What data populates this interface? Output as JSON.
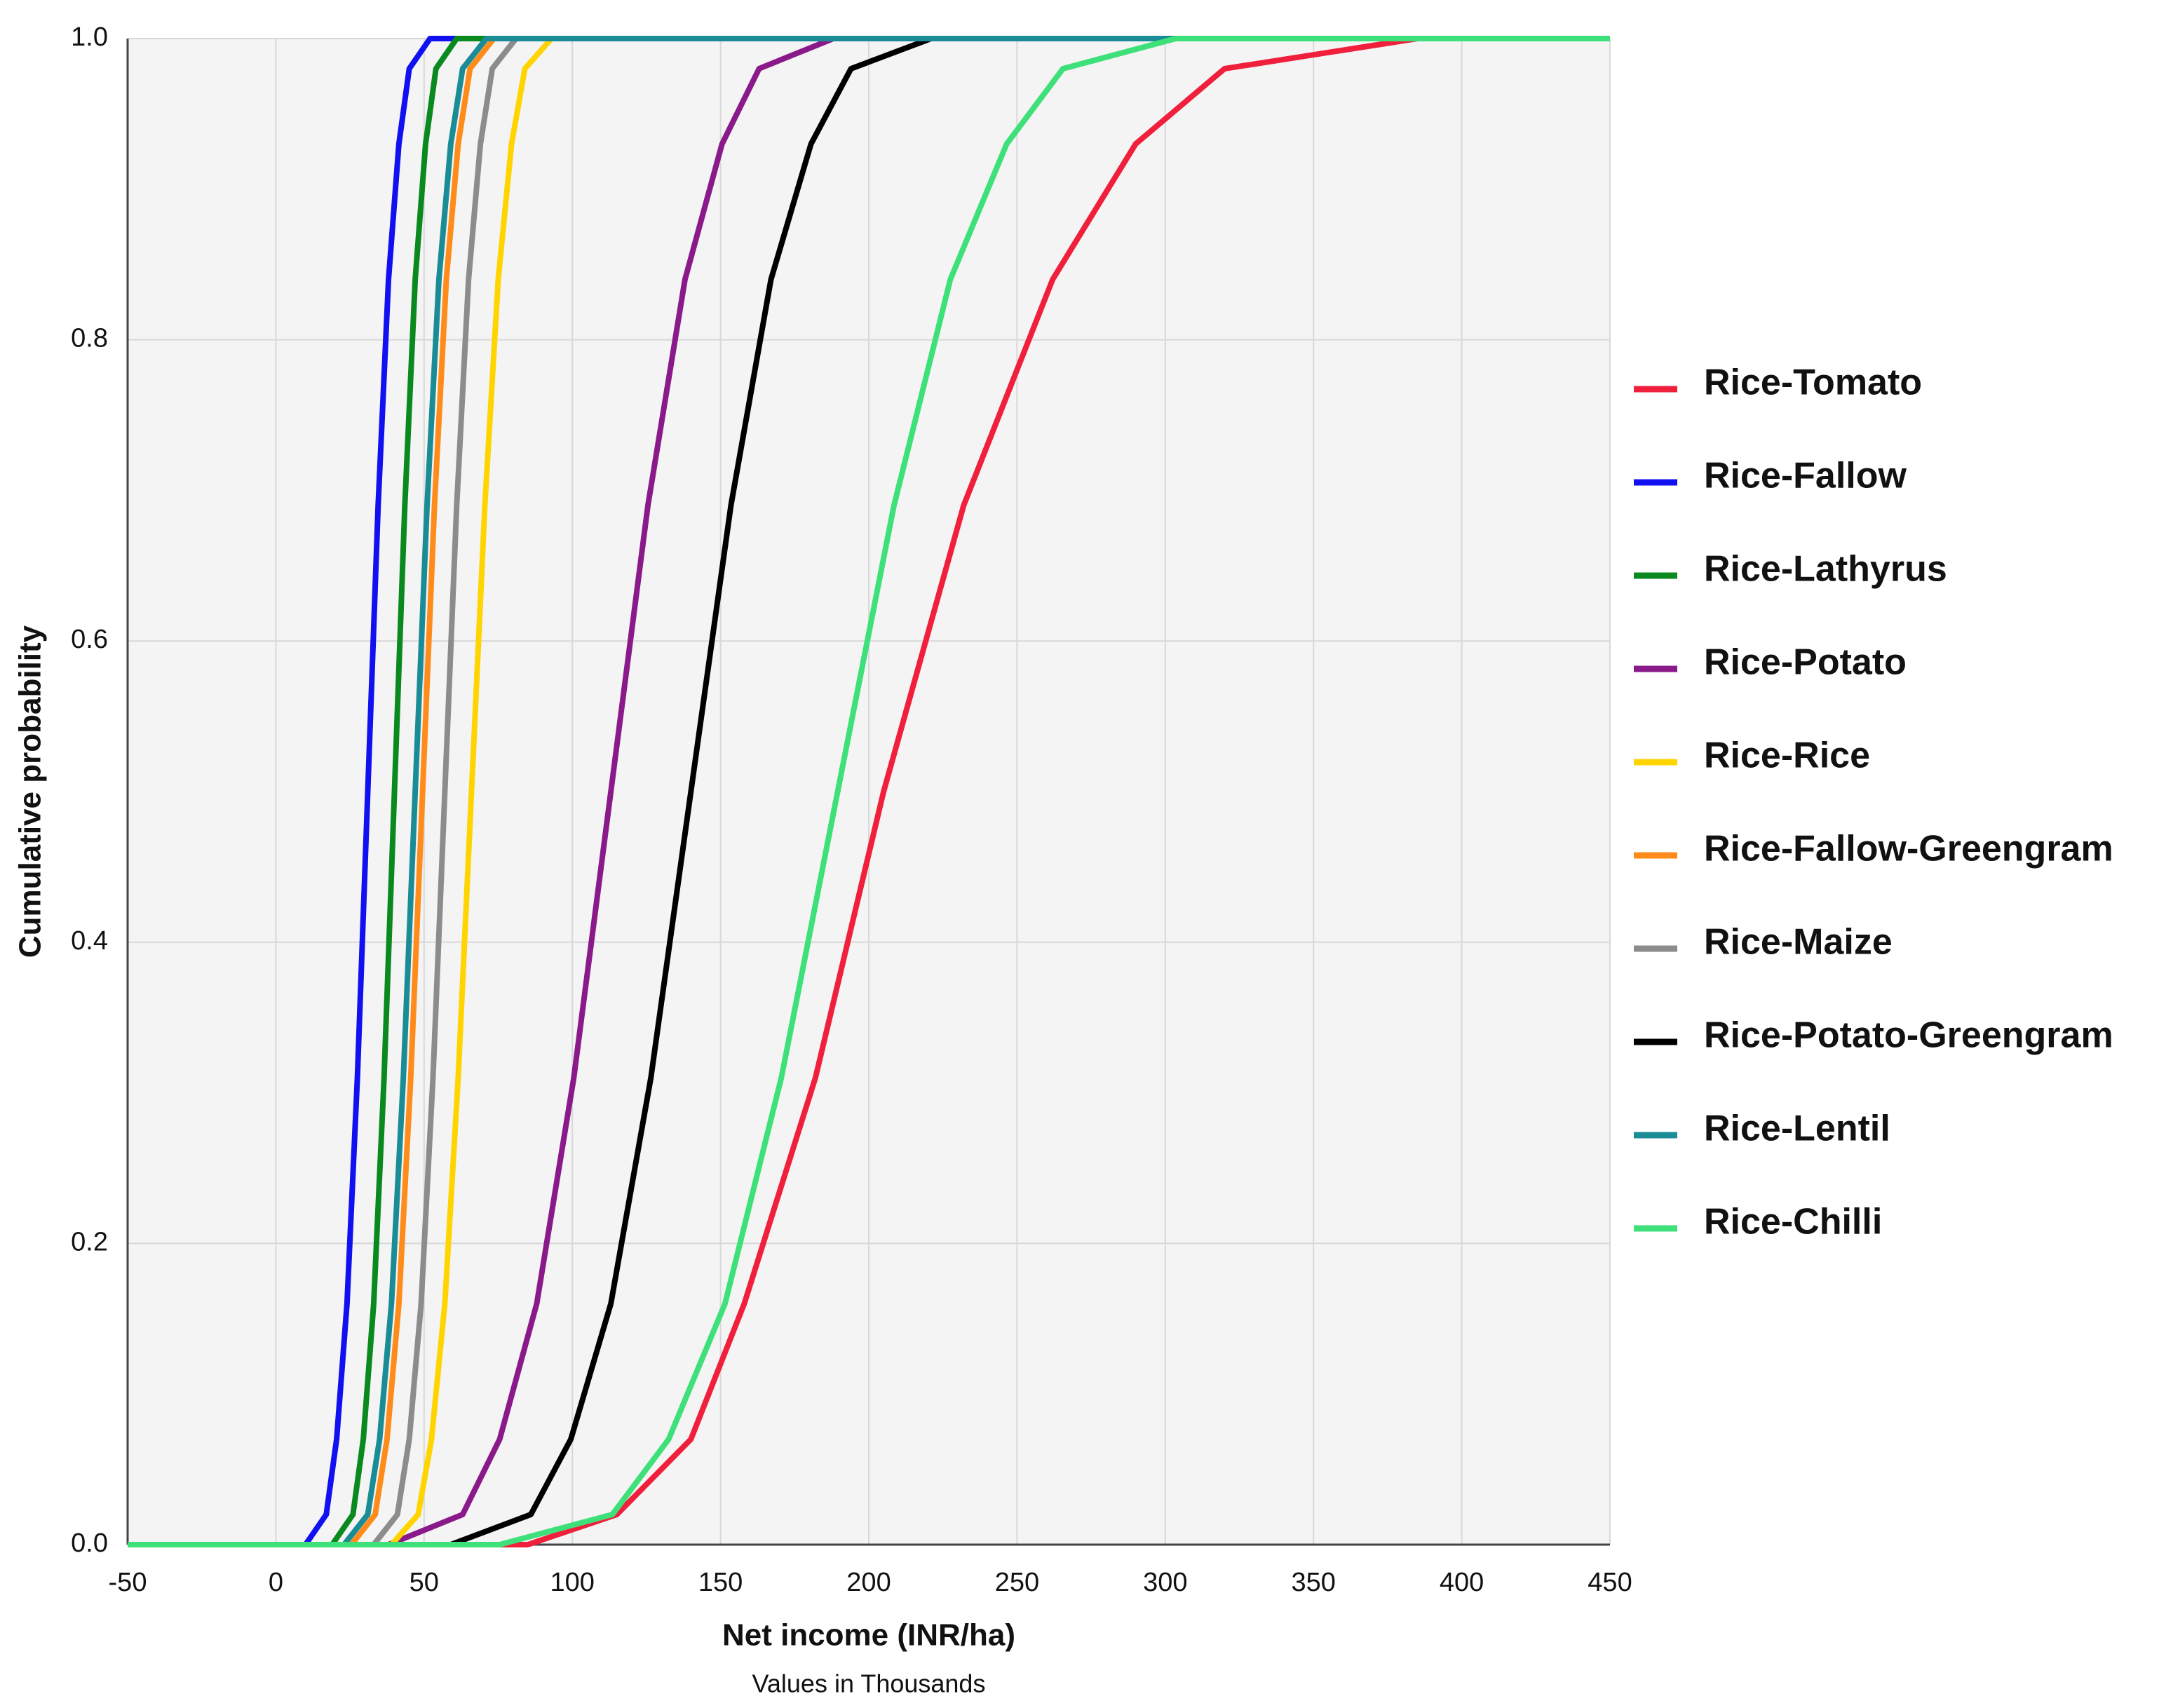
{
  "chart_data": {
    "type": "line",
    "x_label": "Net income (INR/ha)",
    "x_sublabel": "Values in Thousands",
    "y_label": "Cumulative probability",
    "xlim": [
      -50,
      450
    ],
    "xticks": [
      -50,
      0,
      50,
      100,
      150,
      200,
      250,
      300,
      350,
      400,
      450
    ],
    "ylim": [
      0,
      1
    ],
    "yticks": [
      {
        "value": 0,
        "label": "0.0"
      },
      0.2,
      0.4,
      0.6,
      0.8,
      {
        "value": 1,
        "label": "1.0"
      }
    ],
    "grid": true,
    "legend": "right",
    "series": [
      {
        "name": "Rice-Tomato",
        "color": "#f0203c",
        "x": [
          -50,
          85,
          115,
          140,
          158,
          182,
          205,
          232,
          262,
          290,
          320,
          385,
          400
        ],
        "values": [
          0,
          0,
          0.02,
          0.07,
          0.16,
          0.31,
          0.5,
          0.69,
          0.84,
          0.93,
          0.98,
          1,
          1
        ]
      },
      {
        "name": "Rice-Fallow",
        "color": "#1010f0",
        "x": [
          -50,
          10,
          17,
          20.5,
          24,
          27.5,
          31,
          34.5,
          38,
          41.5,
          45,
          52,
          450
        ],
        "values": [
          0,
          0,
          0.02,
          0.07,
          0.16,
          0.31,
          0.5,
          0.69,
          0.84,
          0.93,
          0.98,
          1,
          1
        ]
      },
      {
        "name": "Rice-Lathyrus",
        "color": "#0a8a1e",
        "x": [
          -50,
          19,
          26,
          29.5,
          33,
          36.5,
          40,
          43.5,
          47,
          50.5,
          54,
          61,
          450
        ],
        "values": [
          0,
          0,
          0.02,
          0.07,
          0.16,
          0.31,
          0.5,
          0.69,
          0.84,
          0.93,
          0.98,
          1,
          1
        ]
      },
      {
        "name": "Rice-Potato",
        "color": "#8a1a8a",
        "x": [
          38,
          63,
          75.5,
          88,
          100.5,
          113,
          125.5,
          138,
          150.5,
          163,
          188,
          450
        ],
        "values": [
          0,
          0.02,
          0.07,
          0.16,
          0.31,
          0.5,
          0.69,
          0.84,
          0.93,
          0.98,
          1,
          1
        ]
      },
      {
        "name": "Rice-Rice",
        "color": "#ffd400",
        "x": [
          -50,
          39,
          48,
          52.5,
          57,
          61.5,
          66,
          70.5,
          75,
          79.5,
          84,
          93,
          450
        ],
        "values": [
          0,
          0,
          0.02,
          0.07,
          0.16,
          0.31,
          0.5,
          0.69,
          0.84,
          0.93,
          0.98,
          1,
          1
        ]
      },
      {
        "name": "Rice-Fallow-Greengram",
        "color": "#ff8c1a",
        "x": [
          -50,
          25.5,
          33.5,
          37.5,
          41.5,
          45.5,
          49.5,
          53.5,
          57.5,
          61.5,
          65.5,
          73.5,
          450
        ],
        "values": [
          0,
          0,
          0.02,
          0.07,
          0.16,
          0.31,
          0.5,
          0.69,
          0.84,
          0.93,
          0.98,
          1,
          1
        ]
      },
      {
        "name": "Rice-Maize",
        "color": "#8c8c8c",
        "x": [
          -50,
          33,
          41,
          45,
          49,
          53,
          57,
          61,
          65,
          69,
          73,
          81,
          450
        ],
        "values": [
          0,
          0,
          0.02,
          0.07,
          0.16,
          0.31,
          0.5,
          0.69,
          0.84,
          0.93,
          0.98,
          1,
          1
        ]
      },
      {
        "name": "Rice-Potato-Greengram",
        "color": "#000000",
        "x": [
          59,
          86,
          99.5,
          113,
          126.5,
          140,
          153.5,
          167,
          180.5,
          194,
          221
        ],
        "values": [
          0,
          0.02,
          0.07,
          0.16,
          0.31,
          0.5,
          0.69,
          0.84,
          0.93,
          0.98,
          1
        ]
      },
      {
        "name": "Rice-Lentil",
        "color": "#1a8c96",
        "x": [
          -50,
          23,
          31,
          35,
          39,
          43,
          47,
          51,
          55,
          59,
          63,
          71,
          450
        ],
        "values": [
          0,
          0,
          0.02,
          0.07,
          0.16,
          0.31,
          0.5,
          0.69,
          0.84,
          0.93,
          0.98,
          1,
          1
        ]
      },
      {
        "name": "Rice-Chilli",
        "color": "#3ee07a",
        "x": [
          -50,
          75.5,
          113.5,
          132.5,
          151.5,
          170.5,
          189.5,
          208.5,
          227.5,
          246.5,
          265.5,
          303.5,
          450
        ],
        "values": [
          0,
          0,
          0.02,
          0.07,
          0.16,
          0.31,
          0.5,
          0.69,
          0.84,
          0.93,
          0.98,
          1,
          1
        ]
      }
    ]
  }
}
